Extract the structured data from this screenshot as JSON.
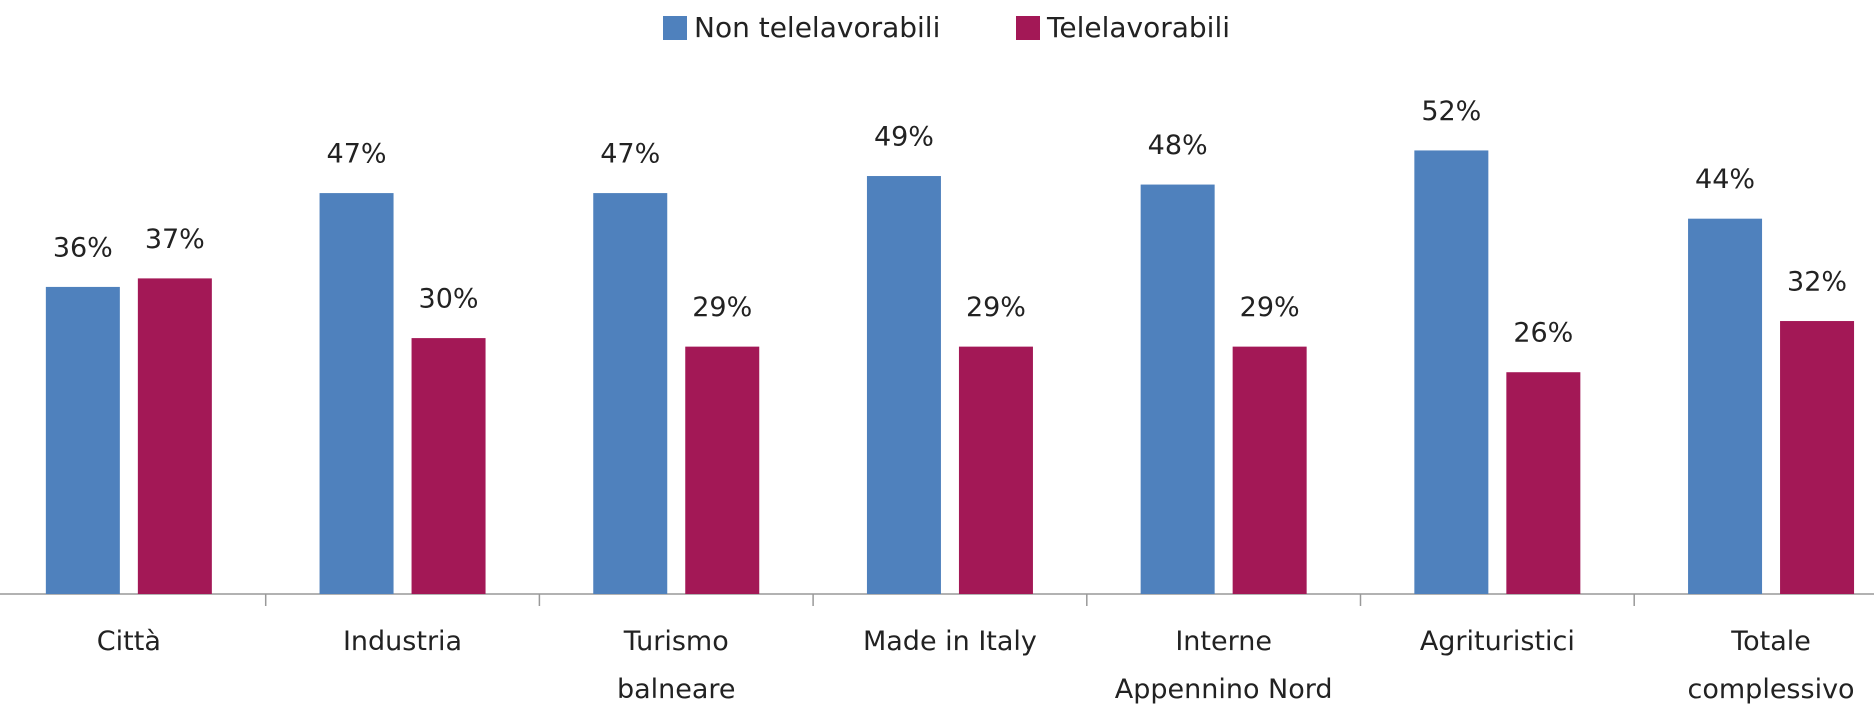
{
  "chart_data": {
    "type": "bar",
    "categories": [
      [
        "Città"
      ],
      [
        "Industria"
      ],
      [
        "Turismo",
        "balneare"
      ],
      [
        "Made in Italy"
      ],
      [
        "Interne",
        "Appennino Nord"
      ],
      [
        "Agrituristici"
      ],
      [
        "Totale",
        "complessivo"
      ]
    ],
    "series": [
      {
        "name": "Non telelavorabili",
        "color": "#4f81bd",
        "values": [
          36,
          47,
          47,
          49,
          48,
          52,
          44
        ],
        "value_labels": [
          "36%",
          "47%",
          "47%",
          "49%",
          "48%",
          "52%",
          "44%"
        ]
      },
      {
        "name": "Telelavorabili",
        "color": "#a31856",
        "values": [
          37,
          30,
          29,
          29,
          29,
          26,
          32
        ],
        "value_labels": [
          "37%",
          "30%",
          "29%",
          "29%",
          "29%",
          "26%",
          "32%"
        ]
      }
    ],
    "legend": "top"
  }
}
